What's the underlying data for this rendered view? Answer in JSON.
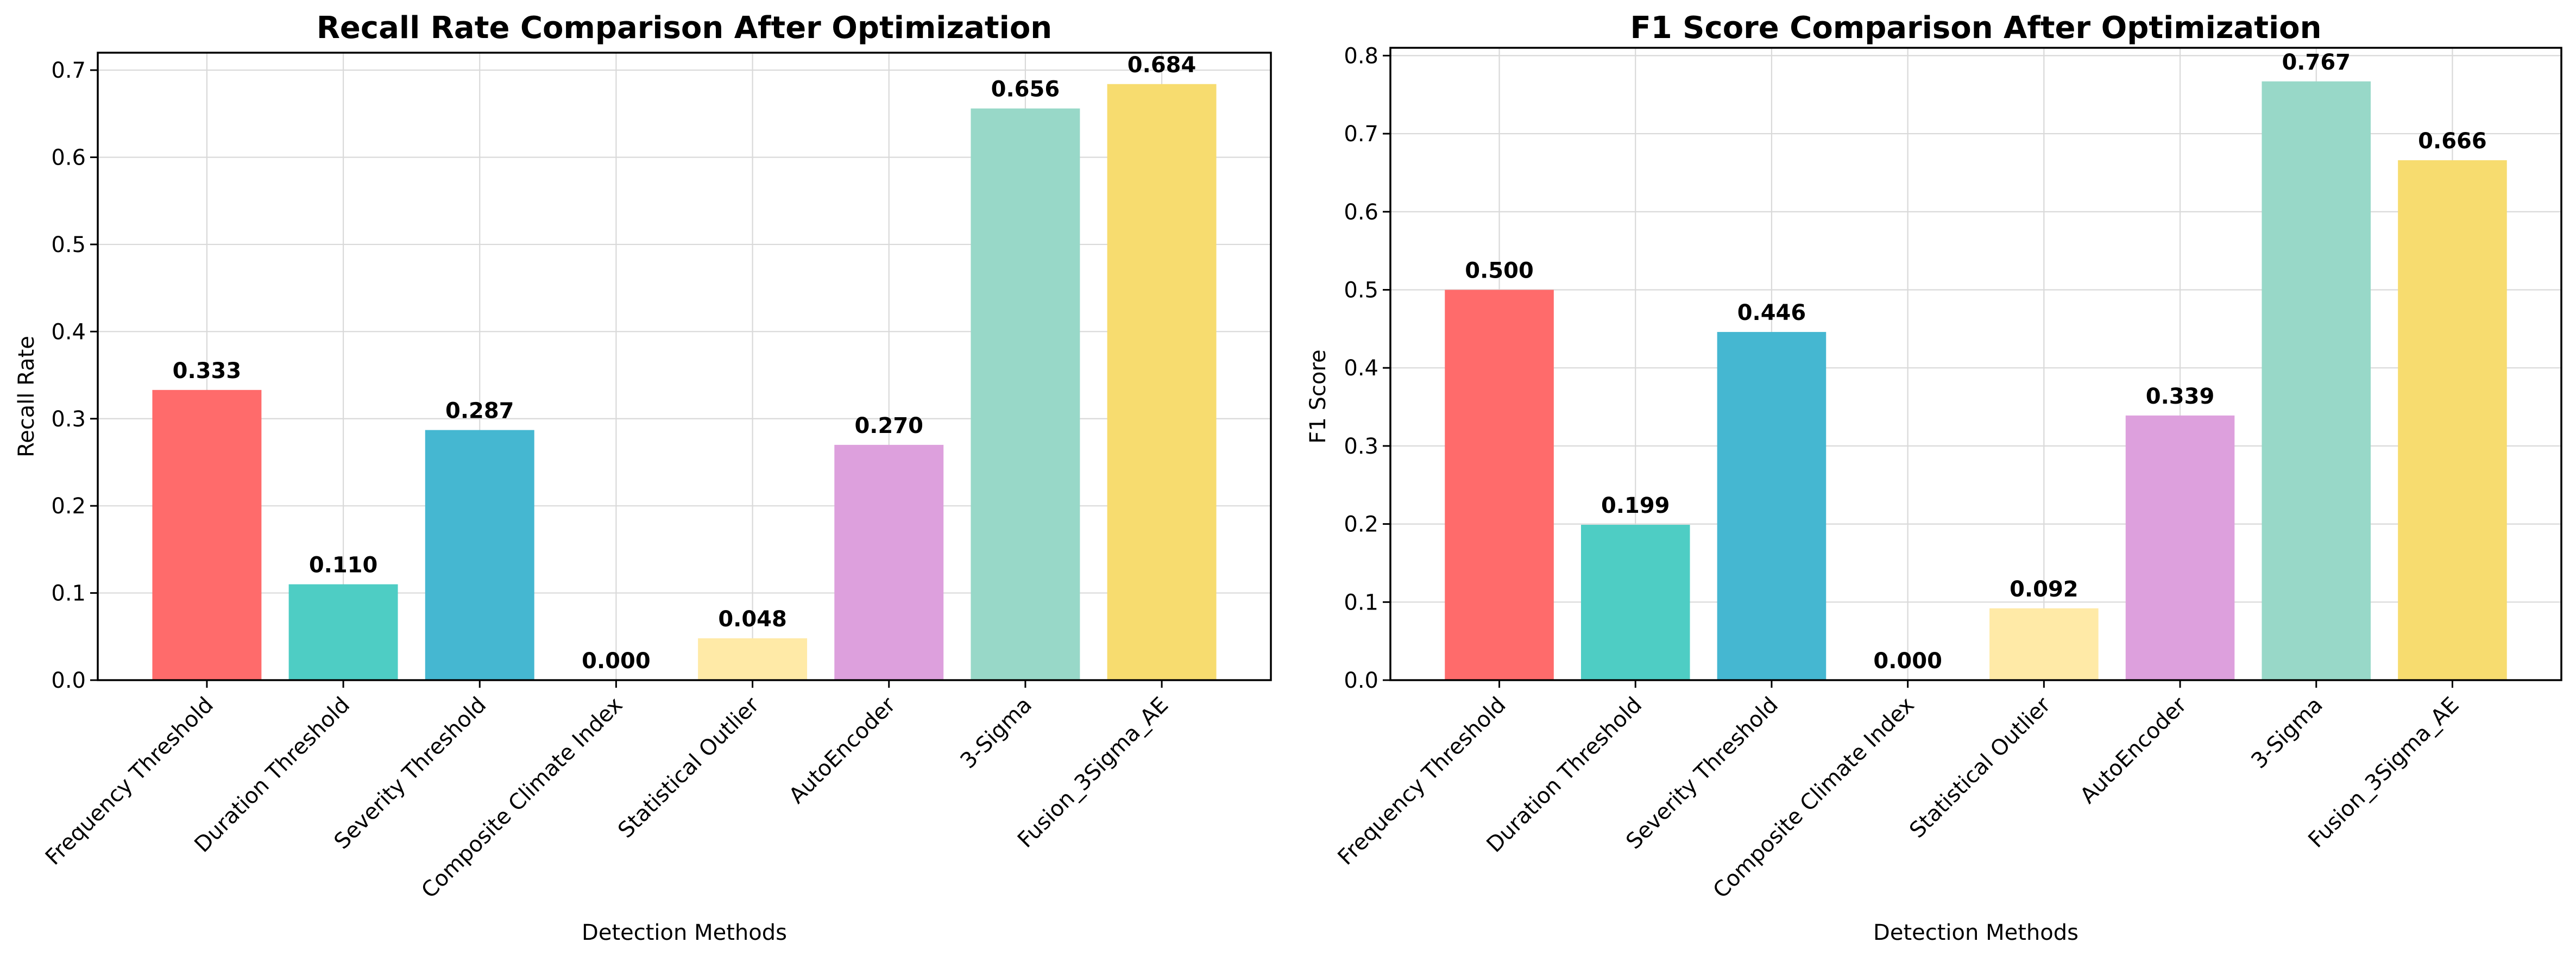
{
  "chart_data": [
    {
      "type": "bar",
      "title": "Recall Rate Comparison After Optimization",
      "xlabel": "Detection Methods",
      "ylabel": "Recall Rate",
      "ylim": [
        0,
        0.72
      ],
      "yticks": [
        "0.0",
        "0.1",
        "0.2",
        "0.3",
        "0.4",
        "0.5",
        "0.6",
        "0.7"
      ],
      "grid": true,
      "categories": [
        "Frequency Threshold",
        "Duration Threshold",
        "Severity Threshold",
        "Composite Climate Index",
        "Statistical Outlier",
        "AutoEncoder",
        "3-Sigma",
        "Fusion_3Sigma_AE"
      ],
      "values": [
        0.333,
        0.11,
        0.287,
        0.0,
        0.048,
        0.27,
        0.656,
        0.684
      ],
      "value_labels": [
        "0.333",
        "0.110",
        "0.287",
        "0.000",
        "0.048",
        "0.270",
        "0.656",
        "0.684"
      ]
    },
    {
      "type": "bar",
      "title": "F1 Score Comparison After Optimization",
      "xlabel": "Detection Methods",
      "ylabel": "F1 Score",
      "ylim": [
        0,
        0.81
      ],
      "yticks": [
        "0.0",
        "0.1",
        "0.2",
        "0.3",
        "0.4",
        "0.5",
        "0.6",
        "0.7",
        "0.8"
      ],
      "grid": true,
      "categories": [
        "Frequency Threshold",
        "Duration Threshold",
        "Severity Threshold",
        "Composite Climate Index",
        "Statistical Outlier",
        "AutoEncoder",
        "3-Sigma",
        "Fusion_3Sigma_AE"
      ],
      "values": [
        0.5,
        0.199,
        0.446,
        0.0,
        0.092,
        0.339,
        0.767,
        0.666
      ],
      "value_labels": [
        "0.500",
        "0.199",
        "0.446",
        "0.000",
        "0.092",
        "0.339",
        "0.767",
        "0.666"
      ]
    }
  ],
  "colors": [
    "#ff6b6b",
    "#4ecdc4",
    "#45b7d1",
    "#96ceb4",
    "#ffeaa7",
    "#dda0dd",
    "#98d8c8",
    "#f7dc6f"
  ]
}
